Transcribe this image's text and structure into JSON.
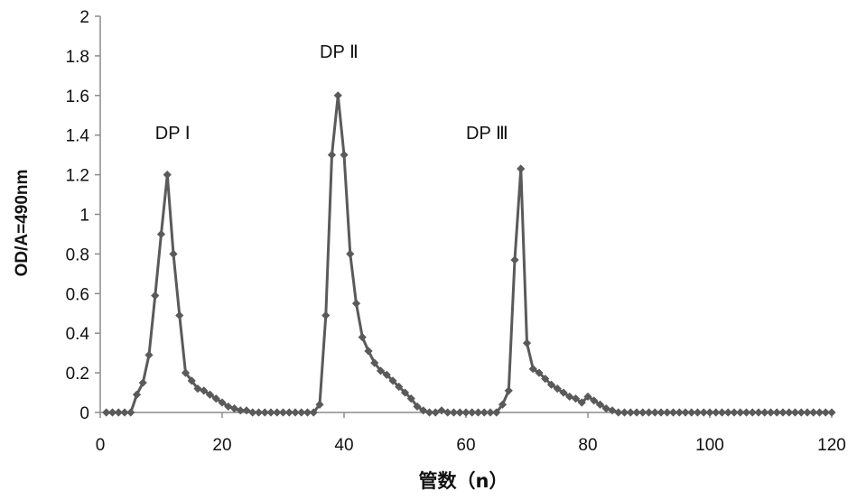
{
  "chart_data": {
    "type": "line",
    "xlabel": "管数（n）",
    "ylabel": "OD/A=490nm",
    "xlim": [
      0,
      120
    ],
    "ylim": [
      0,
      2
    ],
    "x_ticks": [
      "0",
      "20",
      "40",
      "60",
      "80",
      "100",
      "120"
    ],
    "y_ticks": [
      "0",
      "0.2",
      "0.4",
      "0.6",
      "0.8",
      "1",
      "1.2",
      "1.4",
      "1.6",
      "1.8",
      "2"
    ],
    "grid": false,
    "legend": "none",
    "color": "#5a5a5a",
    "annotations": [
      {
        "text": "DP Ⅰ",
        "x": 9,
        "y": 1.38
      },
      {
        "text": "DP Ⅱ",
        "x": 36,
        "y": 1.79
      },
      {
        "text": "DP Ⅲ",
        "x": 60,
        "y": 1.38
      }
    ],
    "series": [
      {
        "x": [
          1,
          2,
          3,
          4,
          5,
          6,
          7,
          8,
          9,
          10,
          11,
          12,
          13,
          14,
          15,
          16,
          17,
          18,
          19,
          20,
          21,
          22,
          23,
          24,
          25,
          26,
          27,
          28,
          29,
          30,
          31,
          32,
          33,
          34,
          35,
          36,
          37,
          38,
          39,
          40,
          41,
          42,
          43,
          44,
          45,
          46,
          47,
          48,
          49,
          50,
          51,
          52,
          53,
          54,
          55,
          56,
          57,
          58,
          59,
          60,
          61,
          62,
          63,
          64,
          65,
          66,
          67,
          68,
          69,
          70,
          71,
          72,
          73,
          74,
          75,
          76,
          77,
          78,
          79,
          80,
          81,
          82,
          83,
          84,
          85,
          86,
          87,
          88,
          89,
          90,
          91,
          92,
          93,
          94,
          95,
          96,
          97,
          98,
          99,
          100,
          101,
          102,
          103,
          104,
          105,
          106,
          107,
          108,
          109,
          110,
          111,
          112,
          113,
          114,
          115,
          116,
          117,
          118,
          119,
          120
        ],
        "y": [
          0,
          0,
          0,
          0,
          0,
          0.09,
          0.15,
          0.29,
          0.59,
          0.9,
          1.2,
          0.8,
          0.49,
          0.2,
          0.16,
          0.12,
          0.11,
          0.09,
          0.07,
          0.05,
          0.03,
          0.02,
          0.01,
          0.01,
          0,
          0,
          0,
          0,
          0,
          0,
          0,
          0,
          0,
          0,
          0,
          0.04,
          0.49,
          1.3,
          1.6,
          1.3,
          0.8,
          0.55,
          0.38,
          0.31,
          0.25,
          0.21,
          0.19,
          0.16,
          0.13,
          0.1,
          0.07,
          0.03,
          0.01,
          0,
          0,
          0.01,
          0,
          0,
          0,
          0,
          0,
          0,
          0,
          0,
          0,
          0.04,
          0.11,
          0.77,
          1.23,
          0.35,
          0.22,
          0.2,
          0.17,
          0.14,
          0.12,
          0.1,
          0.08,
          0.07,
          0.05,
          0.08,
          0.06,
          0.04,
          0.02,
          0.01,
          0,
          0,
          0,
          0,
          0,
          0,
          0,
          0,
          0,
          0,
          0,
          0,
          0,
          0,
          0,
          0,
          0,
          0,
          0,
          0,
          0,
          0,
          0,
          0,
          0,
          0,
          0,
          0,
          0,
          0,
          0,
          0,
          0,
          0,
          0,
          0
        ]
      }
    ]
  }
}
